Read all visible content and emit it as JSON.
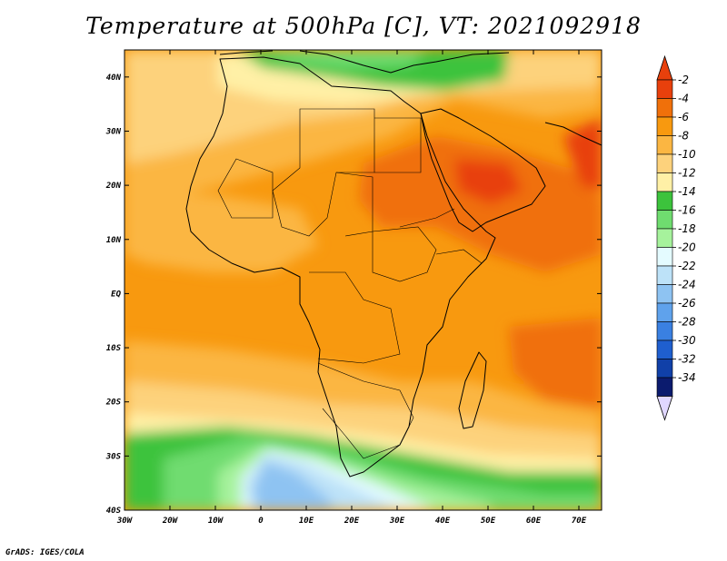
{
  "title": "Temperature at 500hPa [C], VT: 2021092918",
  "credit": "GrADS: IGES/COLA",
  "map": {
    "lat_range": [
      -40,
      45
    ],
    "lon_range": [
      -30,
      75
    ],
    "lat_ticks": [
      {
        "value": 40,
        "label": "40N"
      },
      {
        "value": 30,
        "label": "30N"
      },
      {
        "value": 20,
        "label": "20N"
      },
      {
        "value": 10,
        "label": "10N"
      },
      {
        "value": 0,
        "label": "EQ"
      },
      {
        "value": -10,
        "label": "10S"
      },
      {
        "value": -20,
        "label": "20S"
      },
      {
        "value": -30,
        "label": "30S"
      },
      {
        "value": -40,
        "label": "40S"
      }
    ],
    "lon_ticks": [
      {
        "value": -30,
        "label": "30W"
      },
      {
        "value": -20,
        "label": "20W"
      },
      {
        "value": -10,
        "label": "10W"
      },
      {
        "value": 0,
        "label": "0"
      },
      {
        "value": 10,
        "label": "10E"
      },
      {
        "value": 20,
        "label": "20E"
      },
      {
        "value": 30,
        "label": "30E"
      },
      {
        "value": 40,
        "label": "40E"
      },
      {
        "value": 50,
        "label": "50E"
      },
      {
        "value": 60,
        "label": "60E"
      },
      {
        "value": 70,
        "label": "70E"
      }
    ]
  },
  "colorbar": {
    "labels": [
      "-2",
      "-4",
      "-6",
      "-8",
      "-10",
      "-12",
      "-14",
      "-16",
      "-18",
      "-20",
      "-22",
      "-24",
      "-26",
      "-28",
      "-30",
      "-32",
      "-34"
    ],
    "colors": [
      "#e8400c",
      "#f0700a",
      "#f8990f",
      "#fbb642",
      "#fdd27c",
      "#fff0a6",
      "#3cc33c",
      "#6fdc6f",
      "#a6f29c",
      "#e4fbff",
      "#bde2f8",
      "#8ec3f2",
      "#5fa2ec",
      "#3a80e1",
      "#1f5fcf",
      "#1040a8",
      "#0b1b6e"
    ],
    "top_arrow_color": "#e8400c",
    "bottom_arrow_color": "#e0d7ff"
  }
}
